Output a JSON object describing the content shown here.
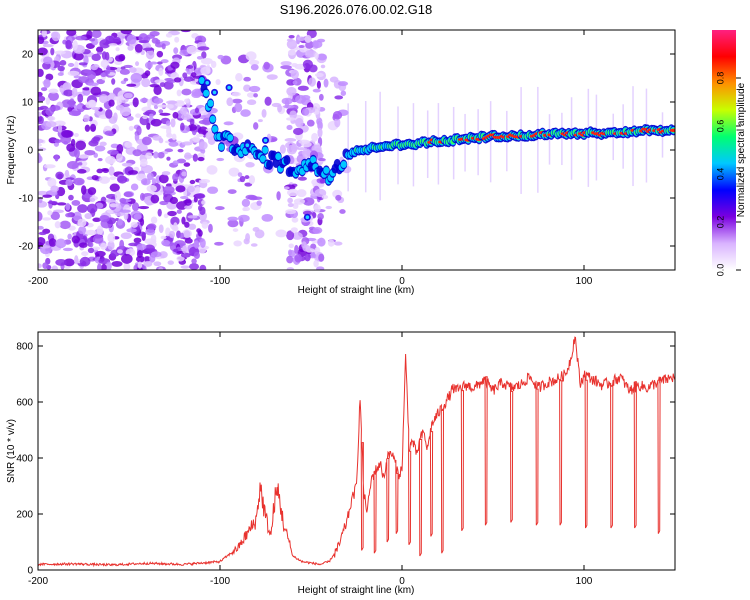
{
  "title": "S196.2026.076.00.02.G18",
  "chart_data": [
    {
      "type": "heatmap",
      "title": "",
      "xlabel": "Height of straight line (km)",
      "ylabel": "Frequency (Hz)",
      "xlim": [
        -200,
        150
      ],
      "ylim": [
        -25,
        25
      ],
      "xticks": [
        -200,
        -100,
        0,
        100
      ],
      "yticks": [
        -20,
        -10,
        0,
        10,
        20
      ],
      "colorbar": {
        "label": "Normalized spectral amplitude",
        "range": [
          0,
          1
        ],
        "ticks": [
          "0.0",
          "0.2",
          "0.4",
          "0.6",
          "0.8"
        ],
        "colors": [
          "#ffffff",
          "#d9b3ff",
          "#7a00e0",
          "#0000ff",
          "#00c8ff",
          "#00ff70",
          "#c8ff00",
          "#ff9000",
          "#ff0000",
          "#ff2080"
        ]
      },
      "ridge_line": {
        "x": [
          -110,
          -100,
          -90,
          -80,
          -70,
          -60,
          -50,
          -40,
          -35,
          -30,
          -25,
          -20,
          -10,
          0,
          10,
          25,
          40,
          55,
          70,
          85,
          100,
          115,
          130,
          150
        ],
        "y": [
          14,
          2,
          1,
          -1,
          -2,
          -4,
          -3,
          -5,
          -3,
          -1,
          0,
          0,
          1,
          1,
          1.5,
          2,
          2.5,
          3,
          3,
          3.5,
          3.5,
          3.5,
          4,
          4
        ]
      }
    },
    {
      "type": "line",
      "title": "",
      "xlabel": "Height of straight line (km)",
      "ylabel": "SNR (10 * v/v)",
      "xlim": [
        -200,
        150
      ],
      "ylim": [
        0,
        850
      ],
      "xticks": [
        -200,
        -100,
        0,
        100
      ],
      "yticks": [
        0,
        200,
        400,
        600,
        800
      ],
      "series": [
        {
          "name": "SNR",
          "color": "#e8322e",
          "x": [
            -200,
            -180,
            -160,
            -140,
            -120,
            -110,
            -100,
            -95,
            -90,
            -85,
            -80,
            -78,
            -75,
            -72,
            -70,
            -68,
            -65,
            -62,
            -60,
            -55,
            -50,
            -45,
            -40,
            -35,
            -30,
            -28,
            -25,
            -23,
            -21,
            -19,
            -17,
            -15,
            -12,
            -10,
            -8,
            -6,
            -4,
            -2,
            0,
            2,
            4,
            6,
            8,
            10,
            12,
            14,
            16,
            18,
            20,
            22,
            24,
            26,
            28,
            30,
            35,
            40,
            45,
            50,
            55,
            60,
            65,
            70,
            75,
            80,
            85,
            90,
            93,
            95,
            98,
            100,
            105,
            110,
            115,
            120,
            125,
            130,
            135,
            140,
            145,
            150
          ],
          "y": [
            20,
            22,
            18,
            24,
            20,
            25,
            30,
            55,
            80,
            130,
            180,
            300,
            190,
            120,
            250,
            280,
            160,
            100,
            50,
            30,
            25,
            20,
            30,
            80,
            180,
            240,
            300,
            620,
            270,
            210,
            320,
            350,
            380,
            330,
            400,
            420,
            390,
            340,
            360,
            760,
            440,
            460,
            410,
            470,
            490,
            430,
            510,
            540,
            560,
            580,
            600,
            620,
            650,
            640,
            660,
            650,
            680,
            640,
            670,
            650,
            660,
            690,
            650,
            670,
            680,
            700,
            760,
            840,
            660,
            700,
            680,
            660,
            670,
            690,
            640,
            660,
            650,
            670,
            680,
            690
          ],
          "dips": [
            {
              "x": -22,
              "y": 70
            },
            {
              "x": -15,
              "y": 60
            },
            {
              "x": -8,
              "y": 100
            },
            {
              "x": -3,
              "y": 130
            },
            {
              "x": 4,
              "y": 90
            },
            {
              "x": 10,
              "y": 50
            },
            {
              "x": 16,
              "y": 120
            },
            {
              "x": 22,
              "y": 60
            },
            {
              "x": 33,
              "y": 140
            },
            {
              "x": 46,
              "y": 160
            },
            {
              "x": 60,
              "y": 170
            },
            {
              "x": 74,
              "y": 160
            },
            {
              "x": 87,
              "y": 160
            },
            {
              "x": 101,
              "y": 150
            },
            {
              "x": 115,
              "y": 150
            },
            {
              "x": 128,
              "y": 150
            },
            {
              "x": 141,
              "y": 130
            }
          ]
        }
      ]
    }
  ]
}
